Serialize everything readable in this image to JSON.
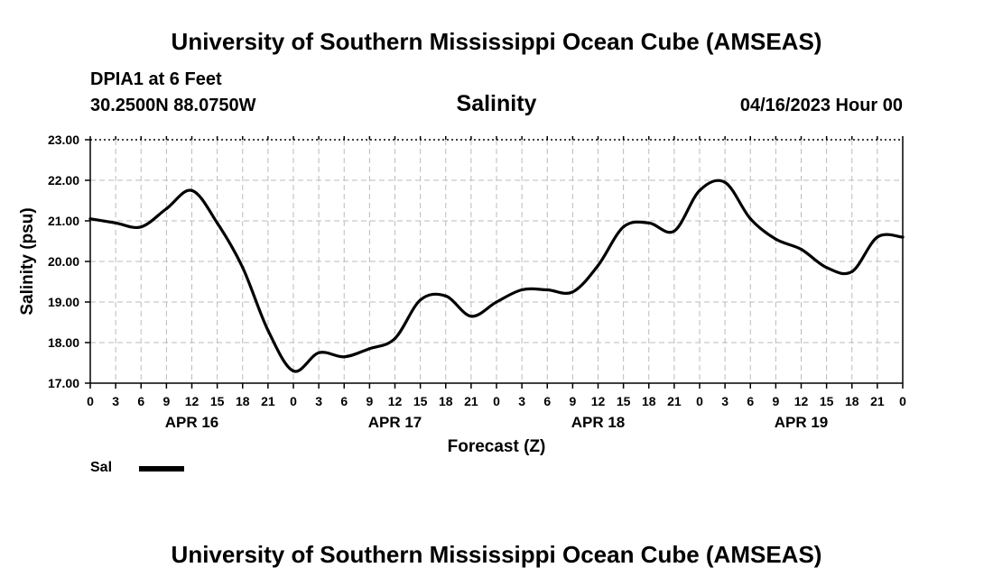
{
  "header": {
    "title": "University of Southern Mississippi Ocean Cube (AMSEAS)",
    "station": "DPIA1 at 6 Feet",
    "coordinates": "30.2500N  88.0750W",
    "date": "04/16/2023 Hour 00"
  },
  "footer": {
    "title": "University of Southern Mississippi Ocean Cube (AMSEAS)"
  },
  "chart_data": {
    "type": "line",
    "title": "Salinity",
    "xlabel": "Forecast (Z)",
    "ylabel": "Salinity (psu)",
    "ylim": [
      17,
      23
    ],
    "xlim": [
      0,
      96
    ],
    "yticks": [
      "17.00",
      "18.00",
      "19.00",
      "20.00",
      "21.00",
      "22.00",
      "23.00"
    ],
    "xtick_labels": [
      "0",
      "3",
      "6",
      "9",
      "12",
      "15",
      "18",
      "21",
      "0",
      "3",
      "6",
      "9",
      "12",
      "15",
      "18",
      "21",
      "0",
      "3",
      "6",
      "9",
      "12",
      "15",
      "18",
      "21",
      "0",
      "3",
      "6",
      "9",
      "12",
      "15",
      "18",
      "21",
      "0"
    ],
    "day_labels": [
      {
        "label": "APR 16",
        "hour": 12
      },
      {
        "label": "APR 17",
        "hour": 36
      },
      {
        "label": "APR 18",
        "hour": 60
      },
      {
        "label": "APR 19",
        "hour": 84
      }
    ],
    "grid": true,
    "series": [
      {
        "name": "Sal",
        "color": "#000000",
        "x": [
          0,
          3,
          6,
          9,
          12,
          15,
          18,
          21,
          24,
          27,
          30,
          33,
          36,
          39,
          42,
          45,
          48,
          51,
          54,
          57,
          60,
          63,
          66,
          69,
          72,
          75,
          78,
          81,
          84,
          87,
          90,
          93,
          96
        ],
        "values": [
          21.05,
          20.95,
          20.85,
          21.3,
          21.75,
          20.95,
          19.85,
          18.3,
          17.3,
          17.75,
          17.65,
          17.85,
          18.1,
          19.05,
          19.15,
          18.65,
          19.0,
          19.3,
          19.3,
          19.25,
          19.9,
          20.85,
          20.95,
          20.75,
          21.75,
          21.95,
          21.05,
          20.55,
          20.3,
          19.85,
          19.75,
          20.6,
          20.6
        ]
      }
    ]
  },
  "legend": {
    "label": "Sal"
  }
}
